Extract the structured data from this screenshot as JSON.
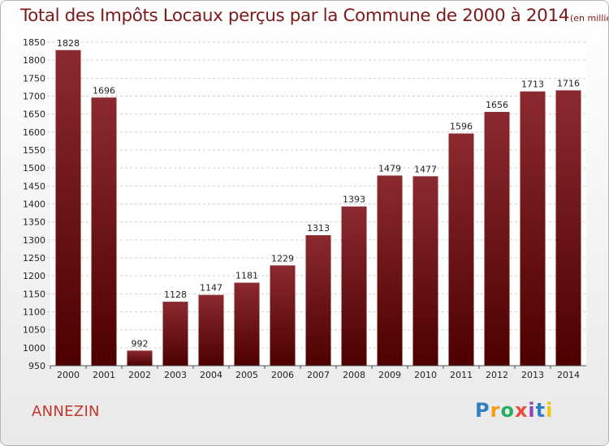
{
  "title": "Total des Impôts Locaux perçus par la Commune de 2000 à 2014",
  "subtitle": "(en milliers d'€)",
  "commune": "ANNEZIN",
  "logo": {
    "text": "Proxiti",
    "letters": [
      "P",
      "r",
      "o",
      "x",
      "i",
      "t",
      "i"
    ],
    "colors": [
      "#2e7fc1",
      "#f39c12",
      "#27ae60",
      "#e74c3c",
      "#8e44ad",
      "#2e7fc1",
      "#f1c40f"
    ]
  },
  "colors": {
    "bar_top": "#8b2a2f",
    "bar_bottom": "#4d0000",
    "title": "#7a1a1a",
    "commune": "#c0392b"
  },
  "chart_data": {
    "type": "bar",
    "title": "Total des Impôts Locaux perçus par la Commune de 2000 à 2014",
    "subtitle": "(en milliers d'€)",
    "categories": [
      "2000",
      "2001",
      "2002",
      "2003",
      "2004",
      "2005",
      "2006",
      "2007",
      "2008",
      "2009",
      "2010",
      "2011",
      "2012",
      "2013",
      "2014"
    ],
    "values": [
      1828,
      1696,
      992,
      1128,
      1147,
      1181,
      1229,
      1313,
      1393,
      1479,
      1477,
      1596,
      1656,
      1713,
      1716
    ],
    "ylim": [
      950,
      1850
    ],
    "yticks": [
      950,
      1000,
      1050,
      1100,
      1150,
      1200,
      1250,
      1300,
      1350,
      1400,
      1450,
      1500,
      1550,
      1600,
      1650,
      1700,
      1750,
      1800,
      1850
    ],
    "grid": true,
    "xlabel": "",
    "ylabel": ""
  }
}
